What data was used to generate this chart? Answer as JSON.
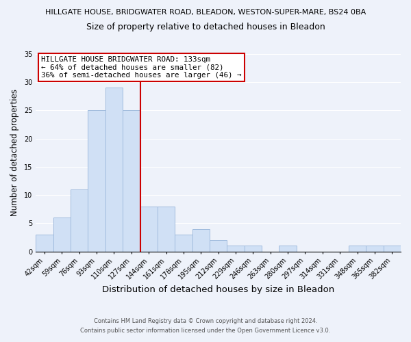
{
  "title_main": "HILLGATE HOUSE, BRIDGWATER ROAD, BLEADON, WESTON-SUPER-MARE, BS24 0BA",
  "title_sub": "Size of property relative to detached houses in Bleadon",
  "xlabel": "Distribution of detached houses by size in Bleadon",
  "ylabel": "Number of detached properties",
  "bar_color": "#d0e0f5",
  "bar_edge_color": "#a0bbdd",
  "categories": [
    "42sqm",
    "59sqm",
    "76sqm",
    "93sqm",
    "110sqm",
    "127sqm",
    "144sqm",
    "161sqm",
    "178sqm",
    "195sqm",
    "212sqm",
    "229sqm",
    "246sqm",
    "263sqm",
    "280sqm",
    "297sqm",
    "314sqm",
    "331sqm",
    "348sqm",
    "365sqm",
    "382sqm"
  ],
  "values": [
    3,
    6,
    11,
    25,
    29,
    25,
    8,
    8,
    3,
    4,
    2,
    1,
    1,
    0,
    1,
    0,
    0,
    0,
    1,
    1,
    1
  ],
  "ylim": [
    0,
    35
  ],
  "yticks": [
    0,
    5,
    10,
    15,
    20,
    25,
    30,
    35
  ],
  "vline_x": 5.5,
  "vline_color": "#cc0000",
  "marker_label_line1": "HILLGATE HOUSE BRIDGWATER ROAD: 133sqm",
  "marker_label_line2": "← 64% of detached houses are smaller (82)",
  "marker_label_line3": "36% of semi-detached houses are larger (46) →",
  "annotation_box_color": "#ffffff",
  "annotation_box_edge": "#cc0000",
  "footer_line1": "Contains HM Land Registry data © Crown copyright and database right 2024.",
  "footer_line2": "Contains public sector information licensed under the Open Government Licence v3.0.",
  "background_color": "#eef2fa",
  "grid_color": "#ffffff",
  "title_main_fontsize": 8.0,
  "title_sub_fontsize": 9.0,
  "xlabel_fontsize": 9.5,
  "ylabel_fontsize": 8.5,
  "tick_fontsize": 7.0,
  "annot_fontsize": 7.8,
  "footer_fontsize": 6.0
}
